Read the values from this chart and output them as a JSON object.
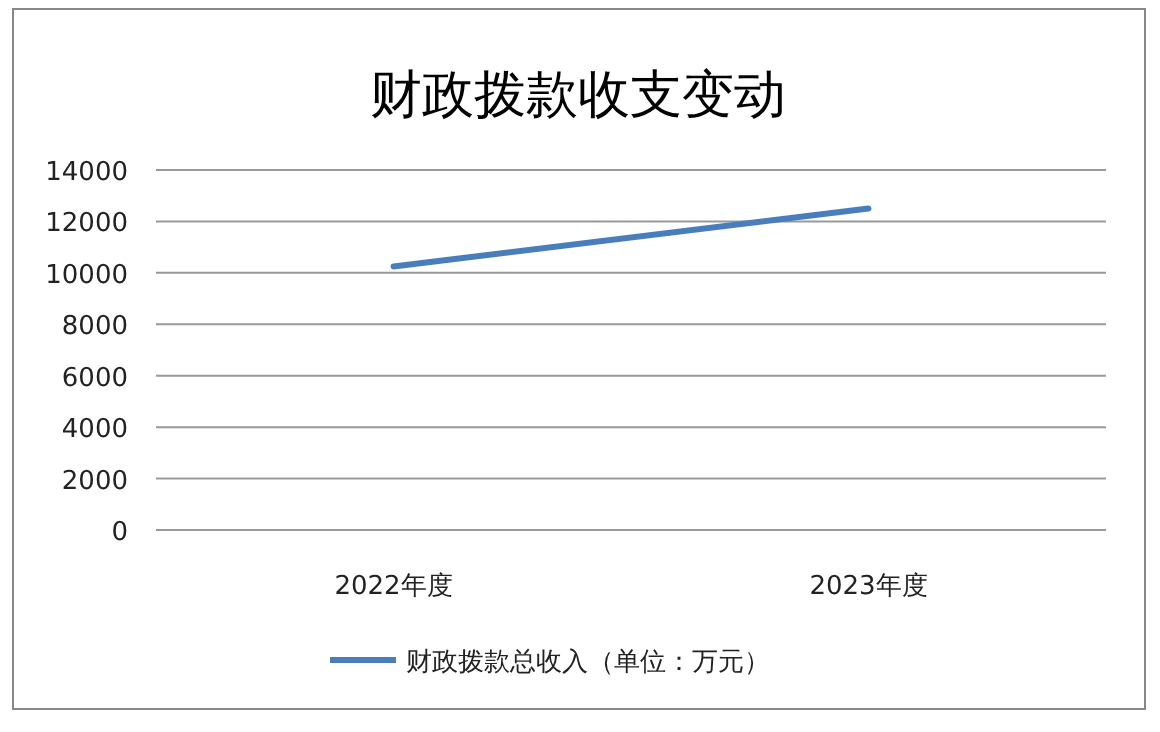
{
  "chart_data": {
    "type": "line",
    "title": "财政拨款收支变动",
    "categories": [
      "2022年度",
      "2023年度"
    ],
    "series": [
      {
        "name": "财政拨款总收入（单位：万元）",
        "color": "#4a7ebb",
        "values": [
          10250,
          12500
        ]
      }
    ],
    "ylim": [
      0,
      14000
    ],
    "yticks": [
      0,
      2000,
      4000,
      6000,
      8000,
      10000,
      12000,
      14000
    ],
    "grid": "y",
    "legend": "bottom",
    "marker": "none",
    "line_style": "solid"
  }
}
